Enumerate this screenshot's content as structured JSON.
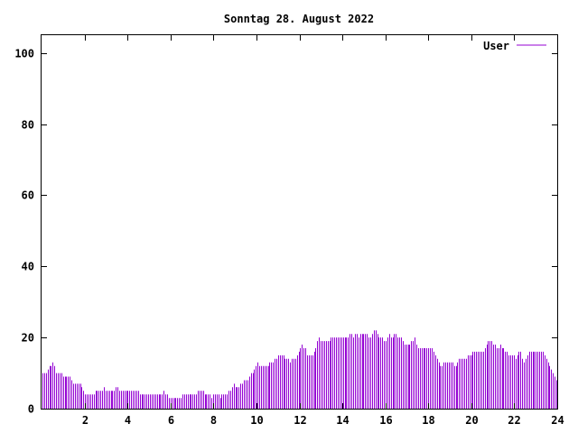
{
  "chart_data": {
    "type": "bar",
    "title": "Sonntag 28. August 2022",
    "xlabel": "",
    "ylabel": "",
    "xlim": [
      0,
      24
    ],
    "ylim": [
      0,
      105
    ],
    "x_ticks": [
      2,
      4,
      6,
      8,
      10,
      12,
      14,
      16,
      18,
      20,
      22,
      24
    ],
    "x_tick_labels": [
      "2",
      "4",
      "6",
      "8",
      "10",
      "12",
      "14",
      "16",
      "18",
      "20",
      "22",
      "24"
    ],
    "y_ticks": [
      0,
      20,
      40,
      60,
      80,
      100
    ],
    "y_tick_labels": [
      "0",
      "20",
      "40",
      "60",
      "80",
      "100"
    ],
    "grid": false,
    "legend_position": "top-right",
    "series": [
      {
        "name": "User",
        "color": "#9400d3",
        "values": [
          10,
          10,
          10,
          11,
          12,
          12,
          13,
          12,
          10,
          10,
          10,
          10,
          9,
          9,
          9,
          9,
          9,
          8,
          7,
          7,
          7,
          7,
          7,
          6,
          5,
          4,
          4,
          4,
          4,
          4,
          4,
          5,
          5,
          5,
          5,
          5,
          6,
          5,
          5,
          5,
          5,
          5,
          5,
          6,
          6,
          5,
          5,
          5,
          5,
          5,
          5,
          5,
          5,
          5,
          5,
          5,
          5,
          4,
          4,
          4,
          4,
          4,
          4,
          4,
          4,
          4,
          4,
          4,
          4,
          4,
          4,
          5,
          4,
          4,
          3,
          3,
          3,
          3,
          3,
          3,
          3,
          3,
          4,
          4,
          4,
          4,
          4,
          4,
          4,
          4,
          4,
          5,
          5,
          5,
          5,
          4,
          4,
          4,
          4,
          3,
          4,
          4,
          4,
          4,
          3,
          4,
          4,
          4,
          4,
          5,
          5,
          6,
          7,
          6,
          6,
          6,
          7,
          7,
          8,
          8,
          8,
          9,
          10,
          10,
          11,
          12,
          13,
          12,
          12,
          12,
          12,
          12,
          12,
          13,
          13,
          13,
          14,
          14,
          15,
          15,
          15,
          15,
          14,
          14,
          14,
          13,
          14,
          14,
          14,
          15,
          16,
          17,
          18,
          17,
          17,
          15,
          15,
          15,
          15,
          16,
          17,
          19,
          20,
          19,
          19,
          19,
          19,
          19,
          19,
          20,
          20,
          20,
          20,
          20,
          20,
          20,
          20,
          20,
          20,
          20,
          21,
          21,
          20,
          21,
          21,
          20,
          21,
          21,
          21,
          21,
          21,
          20,
          20,
          21,
          22,
          22,
          21,
          20,
          20,
          20,
          19,
          19,
          20,
          21,
          20,
          20,
          21,
          21,
          20,
          20,
          20,
          19,
          18,
          18,
          18,
          18,
          19,
          19,
          20,
          18,
          17,
          17,
          17,
          17,
          17,
          17,
          17,
          17,
          17,
          16,
          15,
          14,
          13,
          12,
          12,
          13,
          13,
          13,
          13,
          13,
          13,
          12,
          12,
          13,
          14,
          14,
          14,
          14,
          14,
          15,
          15,
          15,
          16,
          16,
          16,
          16,
          16,
          16,
          16,
          17,
          18,
          19,
          19,
          19,
          18,
          18,
          17,
          17,
          18,
          17,
          17,
          16,
          16,
          15,
          15,
          15,
          15,
          14,
          15,
          16,
          16,
          14,
          13,
          14,
          15,
          16,
          16,
          16,
          16,
          16,
          16,
          16,
          16,
          16,
          15,
          14,
          13,
          12,
          11,
          10,
          9,
          8
        ]
      }
    ]
  }
}
